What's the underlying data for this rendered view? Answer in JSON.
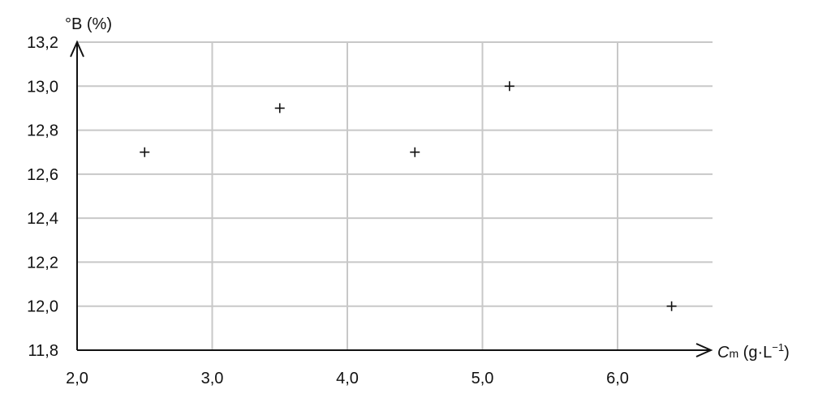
{
  "chart_data": {
    "type": "scatter",
    "marker": "plus",
    "ylabel": "°B (%)",
    "xlabel_main": "C",
    "xlabel_sub": "m",
    "xlabel_unit_prefix": " (g·L",
    "xlabel_unit_exp": "−1",
    "xlabel_unit_suffix": ")",
    "xlim": [
      2.0,
      6.6
    ],
    "ylim": [
      11.8,
      13.2
    ],
    "xticks": [
      2.0,
      3.0,
      4.0,
      5.0,
      6.0
    ],
    "xtick_labels": [
      "2,0",
      "3,0",
      "4,0",
      "5,0",
      "6,0"
    ],
    "yticks": [
      11.8,
      12.0,
      12.2,
      12.4,
      12.6,
      12.8,
      13.0,
      13.2
    ],
    "ytick_labels": [
      "11,8",
      "12,0",
      "12,2",
      "12,4",
      "12,6",
      "12,8",
      "13,0",
      "13,2"
    ],
    "grid": true,
    "colors": {
      "grid": "#c8c8c8",
      "axis": "#111111",
      "marker": "#111111"
    },
    "points": [
      {
        "x": 2.5,
        "y": 12.7
      },
      {
        "x": 3.5,
        "y": 12.9
      },
      {
        "x": 4.5,
        "y": 12.7
      },
      {
        "x": 5.2,
        "y": 13.0
      },
      {
        "x": 6.4,
        "y": 12.0
      }
    ]
  }
}
